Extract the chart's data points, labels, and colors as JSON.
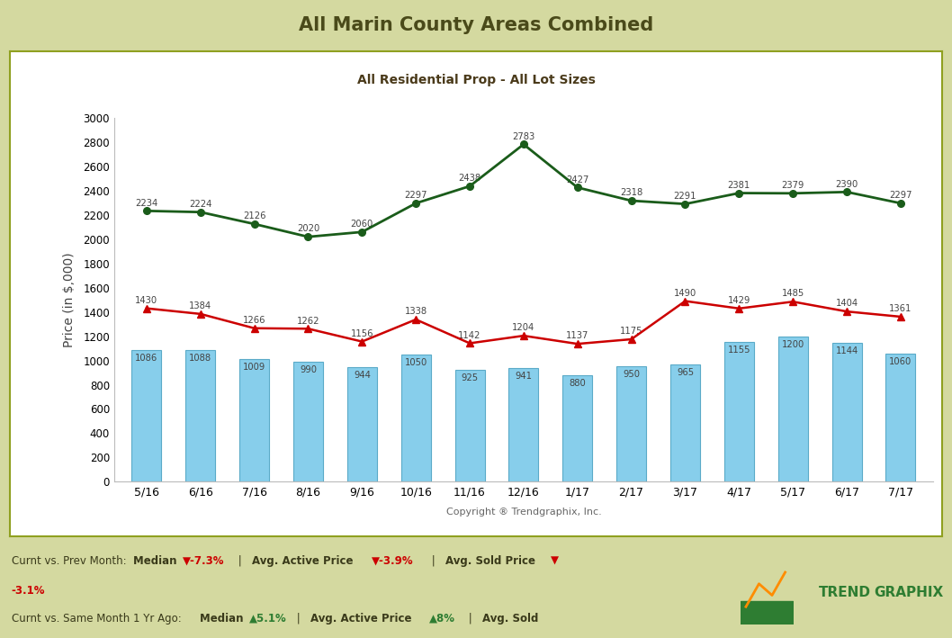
{
  "title": "All Marin County Areas Combined",
  "subtitle": "All Residential Prop - All Lot Sizes",
  "copyright": "Copyright ® Trendgraphix, Inc.",
  "ylabel": "Price (in $,000)",
  "categories": [
    "5/16",
    "6/16",
    "7/16",
    "8/16",
    "9/16",
    "10/16",
    "11/16",
    "12/16",
    "1/17",
    "2/17",
    "3/17",
    "4/17",
    "5/17",
    "6/17",
    "7/17"
  ],
  "median_bars": [
    1086,
    1088,
    1009,
    990,
    944,
    1050,
    925,
    941,
    880,
    950,
    965,
    1155,
    1200,
    1144,
    1060
  ],
  "sold_line": [
    1430,
    1384,
    1266,
    1262,
    1156,
    1338,
    1142,
    1204,
    1137,
    1175,
    1490,
    1429,
    1485,
    1404,
    1361
  ],
  "forsale_line": [
    2234,
    2224,
    2126,
    2020,
    2060,
    2297,
    2438,
    2783,
    2427,
    2318,
    2291,
    2381,
    2379,
    2390,
    2297
  ],
  "bar_color": "#87CEEB",
  "bar_edge_color": "#5AAAC8",
  "sold_color": "#CC0000",
  "forsale_color": "#1A5C1A",
  "title_color": "#4A4A1A",
  "subtitle_color": "#4A3A1A",
  "label_color": "#444444",
  "title_bg_color": "#D4D9A0",
  "footer_bg_color": "#D4D9A0",
  "chart_bg_color": "#FFFFFF",
  "outer_bg_color": "#D4D9A0",
  "border_color": "#8FA020",
  "ylim": [
    0,
    3000
  ],
  "yticks": [
    0,
    200,
    400,
    600,
    800,
    1000,
    1200,
    1400,
    1600,
    1800,
    2000,
    2200,
    2400,
    2600,
    2800,
    3000
  ]
}
